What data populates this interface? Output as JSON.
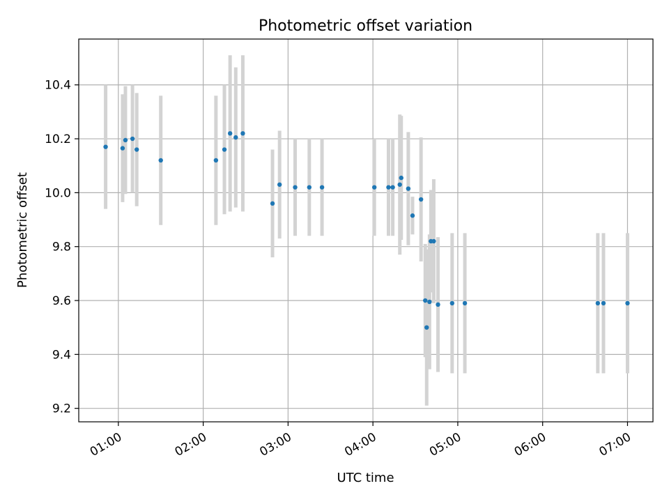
{
  "chart_data": {
    "type": "scatter",
    "title": "Photometric offset variation",
    "xlabel": "UTC time",
    "ylabel": "Photometric offset",
    "x_unit": "UTC time (HH:MM)",
    "xlim": [
      "00:32",
      "07:18"
    ],
    "ylim": [
      9.15,
      10.57
    ],
    "x_ticks": [
      "01:00",
      "02:00",
      "03:00",
      "04:00",
      "05:00",
      "06:00",
      "07:00"
    ],
    "y_ticks": [
      9.2,
      9.4,
      9.6,
      9.8,
      10.0,
      10.2,
      10.4
    ],
    "y_tick_labels": [
      "9.2",
      "9.4",
      "9.6",
      "9.8",
      "10.0",
      "10.2",
      "10.4"
    ],
    "grid": true,
    "point_color": "#1f77b4",
    "errorbar_color": "#d3d3d3",
    "points": [
      {
        "t": "00:51",
        "y": 10.17,
        "err": 0.23
      },
      {
        "t": "01:03",
        "y": 10.165,
        "err": 0.2
      },
      {
        "t": "01:05",
        "y": 10.195,
        "err": 0.2
      },
      {
        "t": "01:10",
        "y": 10.2,
        "err": 0.2
      },
      {
        "t": "01:13",
        "y": 10.16,
        "err": 0.21
      },
      {
        "t": "01:30",
        "y": 10.12,
        "err": 0.24
      },
      {
        "t": "02:09",
        "y": 10.12,
        "err": 0.24
      },
      {
        "t": "02:15",
        "y": 10.16,
        "err": 0.24
      },
      {
        "t": "02:19",
        "y": 10.22,
        "err": 0.29
      },
      {
        "t": "02:23",
        "y": 10.205,
        "err": 0.26
      },
      {
        "t": "02:28",
        "y": 10.22,
        "err": 0.29
      },
      {
        "t": "02:49",
        "y": 9.96,
        "err": 0.2
      },
      {
        "t": "02:54",
        "y": 10.03,
        "err": 0.2
      },
      {
        "t": "03:05",
        "y": 10.02,
        "err": 0.18
      },
      {
        "t": "03:15",
        "y": 10.02,
        "err": 0.18
      },
      {
        "t": "03:24",
        "y": 10.02,
        "err": 0.18
      },
      {
        "t": "04:01",
        "y": 10.02,
        "err": 0.18
      },
      {
        "t": "04:11",
        "y": 10.02,
        "err": 0.18
      },
      {
        "t": "04:14",
        "y": 10.02,
        "err": 0.18
      },
      {
        "t": "04:19",
        "y": 10.03,
        "err": 0.26
      },
      {
        "t": "04:20",
        "y": 10.055,
        "err": 0.23
      },
      {
        "t": "04:25",
        "y": 10.015,
        "err": 0.21
      },
      {
        "t": "04:28",
        "y": 9.915,
        "err": 0.07
      },
      {
        "t": "04:34",
        "y": 9.975,
        "err": 0.23
      },
      {
        "t": "04:37",
        "y": 9.6,
        "err": 0.21
      },
      {
        "t": "04:38",
        "y": 9.5,
        "err": 0.29
      },
      {
        "t": "04:40",
        "y": 9.595,
        "err": 0.25
      },
      {
        "t": "04:41",
        "y": 9.82,
        "err": 0.19
      },
      {
        "t": "04:43",
        "y": 9.82,
        "err": 0.23
      },
      {
        "t": "04:46",
        "y": 9.585,
        "err": 0.25
      },
      {
        "t": "04:56",
        "y": 9.59,
        "err": 0.26
      },
      {
        "t": "05:05",
        "y": 9.59,
        "err": 0.26
      },
      {
        "t": "06:39",
        "y": 9.59,
        "err": 0.26
      },
      {
        "t": "06:43",
        "y": 9.59,
        "err": 0.26
      },
      {
        "t": "07:00",
        "y": 9.59,
        "err": 0.26
      }
    ]
  }
}
